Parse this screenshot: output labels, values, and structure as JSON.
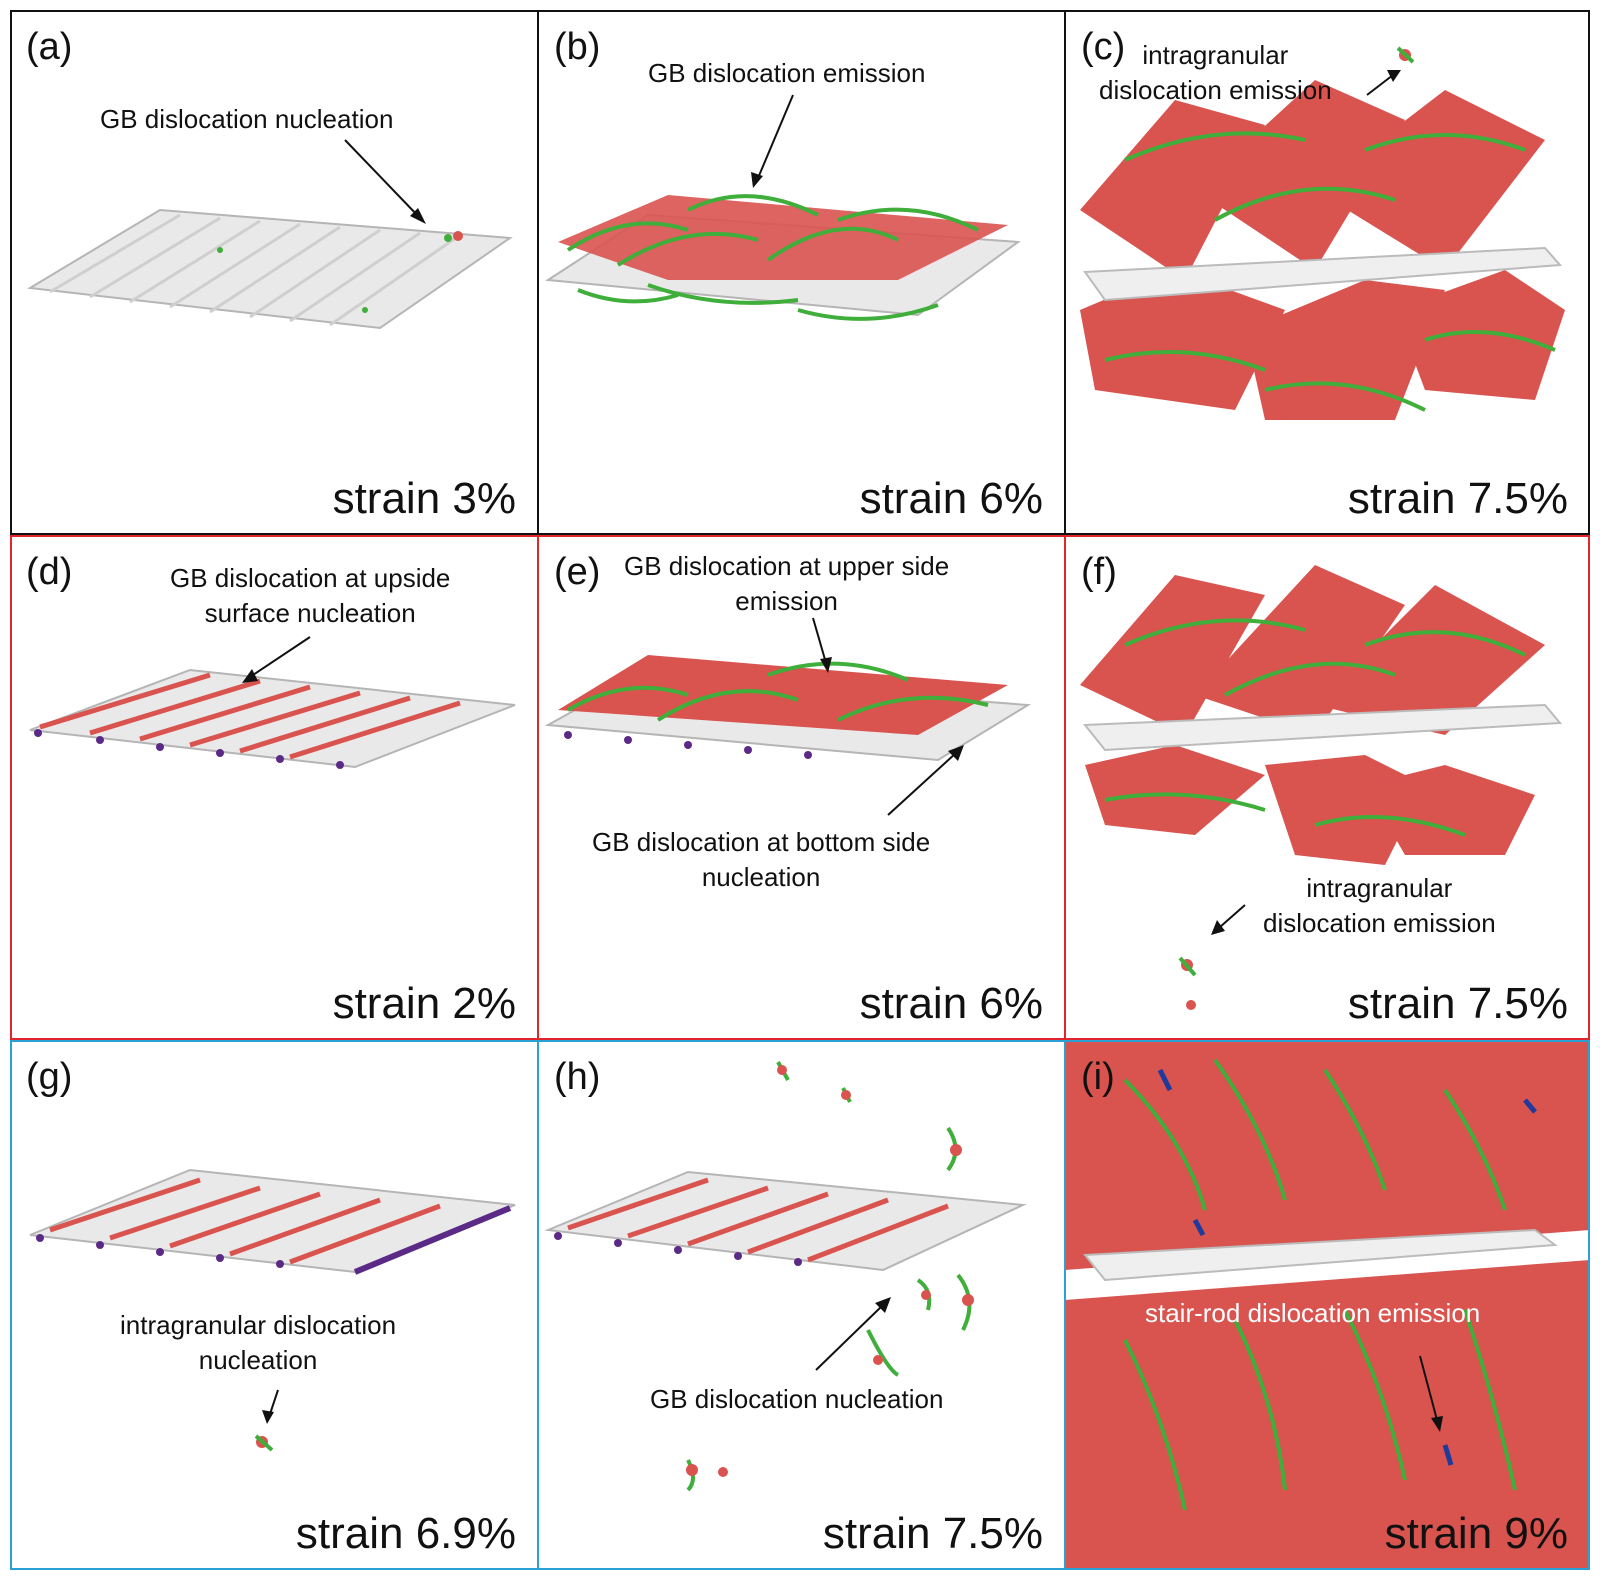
{
  "colors": {
    "row1_border": "#111111",
    "row2_border": "#e0262a",
    "row3_border": "#2aa0d4",
    "atom_red": "#d9534f",
    "atom_white": "#e8e8e8",
    "dislocation_green": "#3fae3a",
    "atom_purple": "#5b2a86",
    "stairrod_blue": "#1f3a9a"
  },
  "panels": {
    "a": {
      "label": "(a)",
      "strain": "strain 3%",
      "ann": [
        "GB dislocation nucleation"
      ]
    },
    "b": {
      "label": "(b)",
      "strain": "strain 6%",
      "ann": [
        "GB dislocation emission"
      ]
    },
    "c": {
      "label": "(c)",
      "strain": "strain 7.5%",
      "ann": [
        "intragranular",
        "dislocation emission"
      ]
    },
    "d": {
      "label": "(d)",
      "strain": "strain 2%",
      "ann": [
        "GB dislocation at upside",
        "surface nucleation"
      ]
    },
    "e": {
      "label": "(e)",
      "strain": "strain 6%",
      "ann": [
        "GB dislocation at upper side",
        "emission"
      ],
      "ann2": [
        "GB dislocation at bottom side",
        "nucleation"
      ]
    },
    "f": {
      "label": "(f)",
      "strain": "strain 7.5%",
      "ann": [
        "intragranular",
        "dislocation emission"
      ]
    },
    "g": {
      "label": "(g)",
      "strain": "strain 6.9%",
      "ann": [
        "intragranular dislocation",
        "nucleation"
      ]
    },
    "h": {
      "label": "(h)",
      "strain": "strain 7.5%",
      "ann": [
        "GB dislocation nucleation"
      ]
    },
    "i": {
      "label": "(i)",
      "strain": "strain 9%",
      "ann": [
        "stair-rod dislocation emission"
      ]
    }
  }
}
